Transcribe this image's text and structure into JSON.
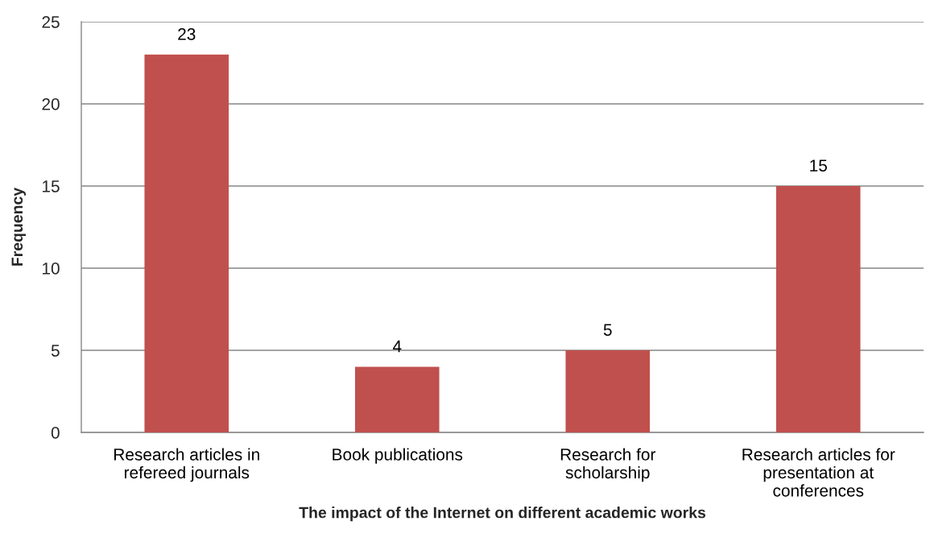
{
  "chart_data": {
    "type": "bar",
    "xlabel": "The impact of the Internet on different academic works",
    "ylabel": "Frequency",
    "categories": [
      "Research articles in\nrefereed journals",
      "Book publications",
      "Research for\nscholarship",
      "Research articles for\npresentation at\nconferences"
    ],
    "values": [
      23,
      4,
      5,
      15
    ],
    "color": "#c0504d",
    "ylim": [
      0,
      25
    ],
    "yticks": [
      0,
      5,
      10,
      15,
      20,
      25
    ],
    "grid": "y",
    "data_labels": true,
    "legend": false
  }
}
